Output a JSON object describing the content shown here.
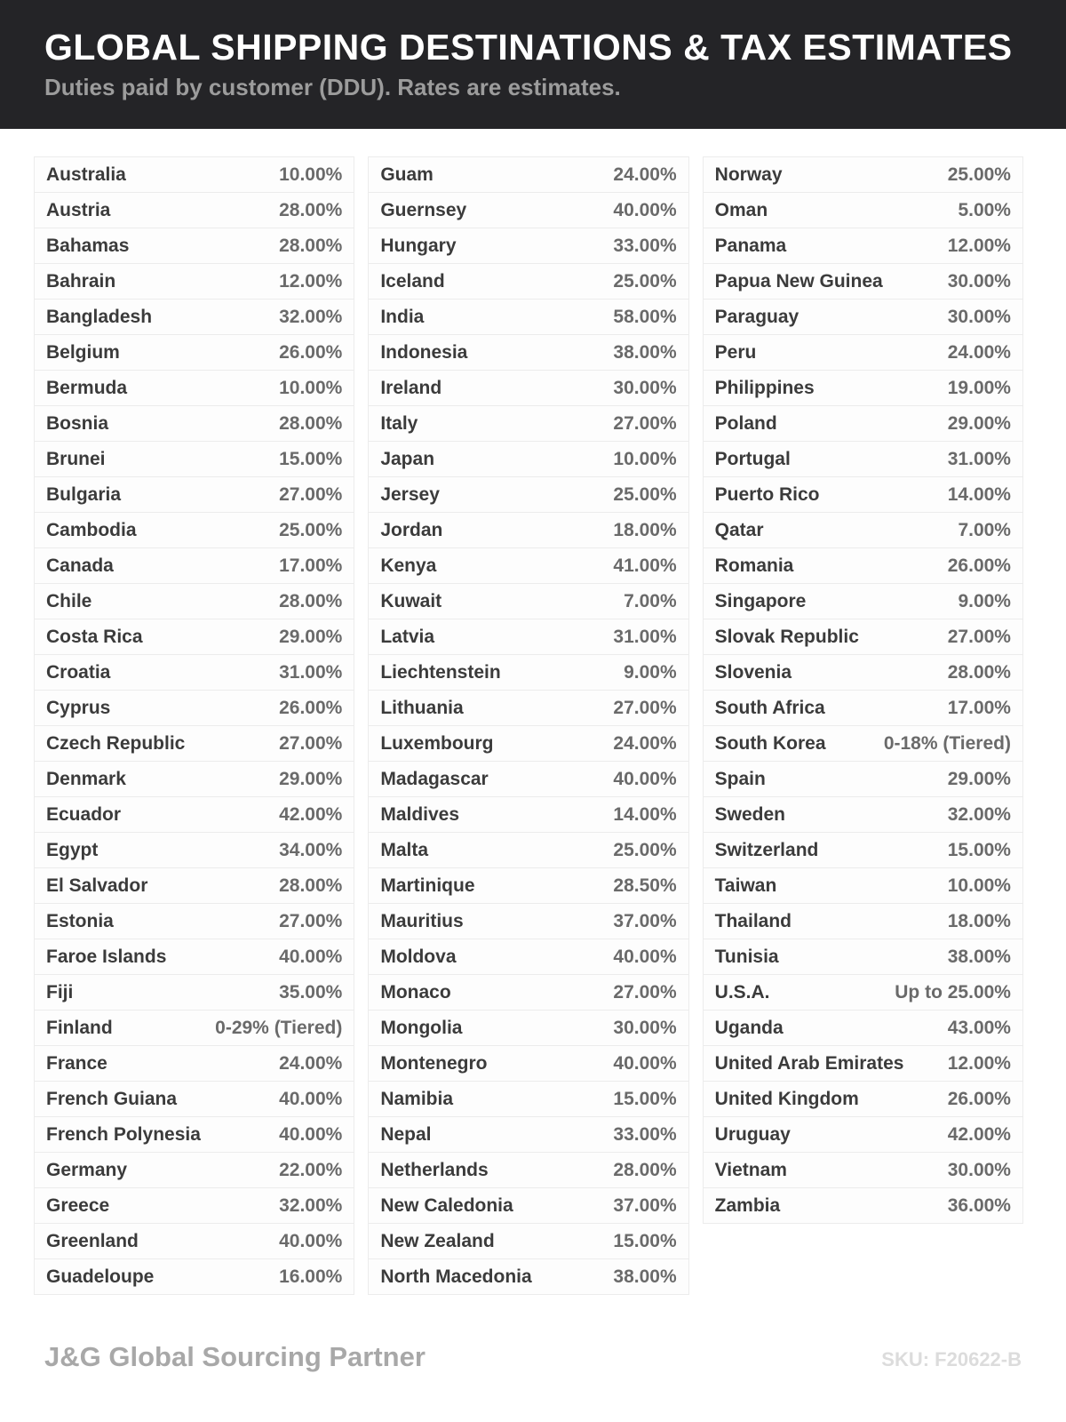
{
  "header": {
    "title": "GLOBAL SHIPPING DESTINATIONS & TAX ESTIMATES",
    "subtitle": "Duties paid by customer (DDU). Rates are estimates."
  },
  "table": {
    "columns": [
      {
        "rows": [
          {
            "country": "Australia",
            "rate": "10.00%"
          },
          {
            "country": "Austria",
            "rate": "28.00%"
          },
          {
            "country": "Bahamas",
            "rate": "28.00%"
          },
          {
            "country": "Bahrain",
            "rate": "12.00%"
          },
          {
            "country": "Bangladesh",
            "rate": "32.00%"
          },
          {
            "country": "Belgium",
            "rate": "26.00%"
          },
          {
            "country": "Bermuda",
            "rate": "10.00%"
          },
          {
            "country": "Bosnia",
            "rate": "28.00%"
          },
          {
            "country": "Brunei",
            "rate": "15.00%"
          },
          {
            "country": "Bulgaria",
            "rate": "27.00%"
          },
          {
            "country": "Cambodia",
            "rate": "25.00%"
          },
          {
            "country": "Canada",
            "rate": "17.00%"
          },
          {
            "country": "Chile",
            "rate": "28.00%"
          },
          {
            "country": "Costa Rica",
            "rate": "29.00%"
          },
          {
            "country": "Croatia",
            "rate": "31.00%"
          },
          {
            "country": "Cyprus",
            "rate": "26.00%"
          },
          {
            "country": "Czech Republic",
            "rate": "27.00%"
          },
          {
            "country": "Denmark",
            "rate": "29.00%"
          },
          {
            "country": "Ecuador",
            "rate": "42.00%"
          },
          {
            "country": "Egypt",
            "rate": "34.00%"
          },
          {
            "country": "El Salvador",
            "rate": "28.00%"
          },
          {
            "country": "Estonia",
            "rate": "27.00%"
          },
          {
            "country": "Faroe Islands",
            "rate": "40.00%"
          },
          {
            "country": "Fiji",
            "rate": "35.00%"
          },
          {
            "country": "Finland",
            "rate": "0-29% (Tiered)"
          },
          {
            "country": "France",
            "rate": "24.00%"
          },
          {
            "country": "French Guiana",
            "rate": "40.00%"
          },
          {
            "country": "French Polynesia",
            "rate": "40.00%"
          },
          {
            "country": "Germany",
            "rate": "22.00%"
          },
          {
            "country": "Greece",
            "rate": "32.00%"
          },
          {
            "country": "Greenland",
            "rate": "40.00%"
          },
          {
            "country": "Guadeloupe",
            "rate": "16.00%"
          }
        ]
      },
      {
        "rows": [
          {
            "country": "Guam",
            "rate": "24.00%"
          },
          {
            "country": "Guernsey",
            "rate": "40.00%"
          },
          {
            "country": "Hungary",
            "rate": "33.00%"
          },
          {
            "country": "Iceland",
            "rate": "25.00%"
          },
          {
            "country": "India",
            "rate": "58.00%"
          },
          {
            "country": "Indonesia",
            "rate": "38.00%"
          },
          {
            "country": "Ireland",
            "rate": "30.00%"
          },
          {
            "country": "Italy",
            "rate": "27.00%"
          },
          {
            "country": "Japan",
            "rate": "10.00%"
          },
          {
            "country": "Jersey",
            "rate": "25.00%"
          },
          {
            "country": "Jordan",
            "rate": "18.00%"
          },
          {
            "country": "Kenya",
            "rate": "41.00%"
          },
          {
            "country": "Kuwait",
            "rate": "7.00%"
          },
          {
            "country": "Latvia",
            "rate": "31.00%"
          },
          {
            "country": "Liechtenstein",
            "rate": "9.00%"
          },
          {
            "country": "Lithuania",
            "rate": "27.00%"
          },
          {
            "country": "Luxembourg",
            "rate": "24.00%"
          },
          {
            "country": "Madagascar",
            "rate": "40.00%"
          },
          {
            "country": "Maldives",
            "rate": "14.00%"
          },
          {
            "country": "Malta",
            "rate": "25.00%"
          },
          {
            "country": "Martinique",
            "rate": "28.50%"
          },
          {
            "country": "Mauritius",
            "rate": "37.00%"
          },
          {
            "country": "Moldova",
            "rate": "40.00%"
          },
          {
            "country": "Monaco",
            "rate": "27.00%"
          },
          {
            "country": "Mongolia",
            "rate": "30.00%"
          },
          {
            "country": "Montenegro",
            "rate": "40.00%"
          },
          {
            "country": "Namibia",
            "rate": "15.00%"
          },
          {
            "country": "Nepal",
            "rate": "33.00%"
          },
          {
            "country": "Netherlands",
            "rate": "28.00%"
          },
          {
            "country": "New Caledonia",
            "rate": "37.00%"
          },
          {
            "country": "New Zealand",
            "rate": "15.00%"
          },
          {
            "country": "North Macedonia",
            "rate": "38.00%"
          }
        ]
      },
      {
        "rows": [
          {
            "country": "Norway",
            "rate": "25.00%"
          },
          {
            "country": "Oman",
            "rate": "5.00%"
          },
          {
            "country": "Panama",
            "rate": "12.00%"
          },
          {
            "country": "Papua New Guinea",
            "rate": "30.00%"
          },
          {
            "country": "Paraguay",
            "rate": "30.00%"
          },
          {
            "country": "Peru",
            "rate": "24.00%"
          },
          {
            "country": "Philippines",
            "rate": "19.00%"
          },
          {
            "country": "Poland",
            "rate": "29.00%"
          },
          {
            "country": "Portugal",
            "rate": "31.00%"
          },
          {
            "country": "Puerto Rico",
            "rate": "14.00%"
          },
          {
            "country": "Qatar",
            "rate": "7.00%"
          },
          {
            "country": "Romania",
            "rate": "26.00%"
          },
          {
            "country": "Singapore",
            "rate": "9.00%"
          },
          {
            "country": "Slovak Republic",
            "rate": "27.00%"
          },
          {
            "country": "Slovenia",
            "rate": "28.00%"
          },
          {
            "country": "South Africa",
            "rate": "17.00%"
          },
          {
            "country": "South Korea",
            "rate": "0-18% (Tiered)"
          },
          {
            "country": "Spain",
            "rate": "29.00%"
          },
          {
            "country": "Sweden",
            "rate": "32.00%"
          },
          {
            "country": "Switzerland",
            "rate": "15.00%"
          },
          {
            "country": "Taiwan",
            "rate": "10.00%"
          },
          {
            "country": "Thailand",
            "rate": "18.00%"
          },
          {
            "country": "Tunisia",
            "rate": "38.00%"
          },
          {
            "country": "U.S.A.",
            "rate": "Up to 25.00%"
          },
          {
            "country": "Uganda",
            "rate": "43.00%"
          },
          {
            "country": "United Arab Emirates",
            "rate": "12.00%"
          },
          {
            "country": "United Kingdom",
            "rate": "26.00%"
          },
          {
            "country": "Uruguay",
            "rate": "42.00%"
          },
          {
            "country": "Vietnam",
            "rate": "30.00%"
          },
          {
            "country": "Zambia",
            "rate": "36.00%"
          }
        ]
      }
    ]
  },
  "footer": {
    "brand": "J&G Global Sourcing Partner",
    "sku": "SKU: F20622-B"
  },
  "colors": {
    "header_bg": "#242427",
    "title": "#ffffff",
    "subtitle": "#9c9c9c",
    "country_text": "#3b3b3b",
    "rate_text": "#6a6a6a",
    "row_border": "#ececec",
    "brand_text": "#a8a8a8",
    "sku_text": "#dcdcdc"
  }
}
